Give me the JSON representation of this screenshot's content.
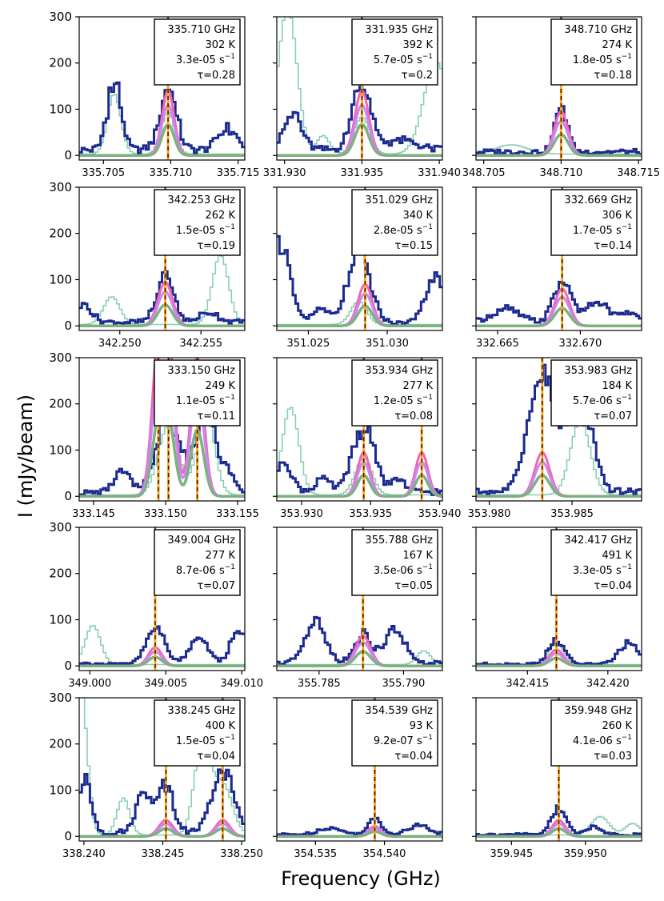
{
  "colors": {
    "observed": "#1a2a8f",
    "other_species": "#8ccfb4",
    "model_a": "#f564b4",
    "model_b": "#c48af2",
    "model_c": "#7fb07f",
    "line_marker": "#f2b01e",
    "line_marker_dash": "#5a0f1f"
  },
  "chart_data": {
    "type": "line",
    "xlabel": "Frequency (GHz)",
    "ylabel": "I (mJy/beam)",
    "ylim": [
      -10,
      300
    ],
    "yticks": [
      0,
      100,
      200,
      300
    ],
    "ytick_labels": [
      "0",
      "100",
      "200",
      "300"
    ],
    "series_names": [
      "observed",
      "other_species",
      "model_a",
      "model_b",
      "model_c"
    ],
    "panels": [
      {
        "freq_label": "335.710 GHz",
        "eup": "302 K",
        "aij": "3.3e-05 s",
        "tau": "τ=0.28",
        "xlim": [
          335.7032,
          335.7155
        ],
        "xticks": [
          335.705,
          335.71,
          335.715
        ],
        "xtick_labels": [
          "335.705",
          "335.710",
          "335.715"
        ],
        "lines": [
          335.7098
        ],
        "peak": 140,
        "observed": [
          {
            "c": 335.7058,
            "a": 145,
            "w": 0.0005
          },
          {
            "c": 335.7098,
            "a": 135,
            "w": 0.0006
          },
          {
            "c": 335.7142,
            "a": 45,
            "w": 0.0007
          }
        ],
        "other": [
          {
            "c": 335.7058,
            "a": 130,
            "w": 0.0005
          },
          {
            "c": 335.7098,
            "a": 90,
            "w": 0.0005
          }
        ],
        "baseline": 12
      },
      {
        "freq_label": "331.935 GHz",
        "eup": "392 K",
        "aij": "5.7e-05 s",
        "tau": "τ=0.2",
        "xlim": [
          331.9295,
          331.9402
        ],
        "xticks": [
          331.93,
          331.935,
          331.94
        ],
        "xtick_labels": [
          "331.930",
          "331.935",
          "331.940"
        ],
        "lines": [
          331.935
        ],
        "peak": 140,
        "observed": [
          {
            "c": 331.9305,
            "a": 80,
            "w": 0.0006
          },
          {
            "c": 331.935,
            "a": 140,
            "w": 0.0006
          },
          {
            "c": 331.9375,
            "a": 20,
            "w": 0.001
          }
        ],
        "other": [
          {
            "c": 331.9302,
            "a": 320,
            "w": 0.0006
          },
          {
            "c": 331.9325,
            "a": 40,
            "w": 0.0004
          },
          {
            "c": 331.935,
            "a": 80,
            "w": 0.0005
          },
          {
            "c": 331.9398,
            "a": 200,
            "w": 0.0008
          }
        ],
        "baseline": 12
      },
      {
        "freq_label": "348.710 GHz",
        "eup": "274 K",
        "aij": "1.8e-05 s",
        "tau": "τ=0.18",
        "xlim": [
          348.7045,
          348.7152
        ],
        "xticks": [
          348.705,
          348.71,
          348.715
        ],
        "xtick_labels": [
          "348.705",
          "348.710",
          "348.715"
        ],
        "lines": [
          348.71
        ],
        "peak": 95,
        "observed": [
          {
            "c": 348.71,
            "a": 95,
            "w": 0.0004
          }
        ],
        "other": [
          {
            "c": 348.7068,
            "a": 20,
            "w": 0.001
          }
        ],
        "baseline": 8
      },
      {
        "freq_label": "342.253 GHz",
        "eup": "262 K",
        "aij": "1.5e-05 s",
        "tau": "τ=0.19",
        "xlim": [
          342.2475,
          342.2577
        ],
        "xticks": [
          342.25,
          342.255
        ],
        "xtick_labels": [
          "342.250",
          "342.255"
        ],
        "lines": [
          342.2528
        ],
        "peak": 95,
        "observed": [
          {
            "c": 342.2478,
            "a": 35,
            "w": 0.0005
          },
          {
            "c": 342.2528,
            "a": 100,
            "w": 0.0005
          },
          {
            "c": 342.2555,
            "a": 20,
            "w": 0.0006
          }
        ],
        "other": [
          {
            "c": 342.2495,
            "a": 60,
            "w": 0.0005
          },
          {
            "c": 342.2562,
            "a": 150,
            "w": 0.0005
          }
        ],
        "baseline": 8
      },
      {
        "freq_label": "351.029 GHz",
        "eup": "340 K",
        "aij": "2.8e-05 s",
        "tau": "τ=0.15",
        "xlim": [
          351.023,
          351.0335
        ],
        "xticks": [
          351.025,
          351.03
        ],
        "xtick_labels": [
          "351.025",
          "351.030"
        ],
        "lines": [
          351.0286
        ],
        "peak": 90,
        "observed": [
          {
            "c": 351.0232,
            "a": 180,
            "w": 0.0006
          },
          {
            "c": 351.0282,
            "a": 150,
            "w": 0.0007
          },
          {
            "c": 351.0258,
            "a": 30,
            "w": 0.0005
          },
          {
            "c": 351.033,
            "a": 100,
            "w": 0.0006
          }
        ],
        "other": [
          {
            "c": 351.0282,
            "a": 50,
            "w": 0.0005
          }
        ],
        "baseline": 6
      },
      {
        "freq_label": "332.669 GHz",
        "eup": "306 K",
        "aij": "1.7e-05 s",
        "tau": "τ=0.14",
        "xlim": [
          332.6637,
          332.6737
        ],
        "xticks": [
          332.665,
          332.67
        ],
        "xtick_labels": [
          "332.665",
          "332.670"
        ],
        "lines": [
          332.6689
        ],
        "peak": 80,
        "observed": [
          {
            "c": 332.6689,
            "a": 90,
            "w": 0.0005
          },
          {
            "c": 332.6655,
            "a": 30,
            "w": 0.0008
          },
          {
            "c": 332.671,
            "a": 40,
            "w": 0.0008
          },
          {
            "c": 332.673,
            "a": 20,
            "w": 0.0004
          }
        ],
        "other": [],
        "baseline": 8
      },
      {
        "freq_label": "333.150 GHz",
        "eup": "249 K",
        "aij": "1.1e-05 s",
        "tau": "τ=0.11",
        "xlim": [
          333.144,
          333.1555
        ],
        "xticks": [
          333.145,
          333.15,
          333.155
        ],
        "xtick_labels": [
          "333.145",
          "333.150",
          "333.155"
        ],
        "lines": [
          333.1495,
          333.1502,
          333.1522
        ],
        "peak": 300,
        "observed": [
          {
            "c": 333.147,
            "a": 45,
            "w": 0.0006
          },
          {
            "c": 333.1502,
            "a": 190,
            "w": 0.0008
          },
          {
            "c": 333.1528,
            "a": 210,
            "w": 0.0006
          },
          {
            "c": 333.1543,
            "a": 40,
            "w": 0.0005
          }
        ],
        "other": [
          {
            "c": 333.1502,
            "a": 150,
            "w": 0.0007
          },
          {
            "c": 333.1528,
            "a": 180,
            "w": 0.0006
          }
        ],
        "baseline": 8
      },
      {
        "freq_label": "353.934 GHz",
        "eup": "277 K",
        "aij": "1.2e-05 s",
        "tau": "τ=0.08",
        "xlim": [
          353.9282,
          353.9402
        ],
        "xticks": [
          353.93,
          353.935,
          353.94
        ],
        "xtick_labels": [
          "353.930",
          "353.935",
          "353.940"
        ],
        "lines": [
          353.9345,
          353.9387
        ],
        "peak": 95,
        "observed": [
          {
            "c": 353.9287,
            "a": 60,
            "w": 0.0006
          },
          {
            "c": 353.9345,
            "a": 140,
            "w": 0.0008
          },
          {
            "c": 353.9315,
            "a": 30,
            "w": 0.0005
          },
          {
            "c": 353.937,
            "a": 30,
            "w": 0.0004
          }
        ],
        "other": [
          {
            "c": 353.9292,
            "a": 190,
            "w": 0.0006
          },
          {
            "c": 353.9345,
            "a": 80,
            "w": 0.0006
          }
        ],
        "baseline": 10
      },
      {
        "freq_label": "353.983 GHz",
        "eup": "184 K",
        "aij": "5.7e-06 s",
        "tau": "τ=0.07",
        "xlim": [
          353.9792,
          353.9892
        ],
        "xticks": [
          353.98,
          353.985
        ],
        "xtick_labels": [
          "353.980",
          "353.985"
        ],
        "lines": [
          353.9832
        ],
        "peak": 95,
        "observed": [
          {
            "c": 353.9832,
            "a": 250,
            "w": 0.0008
          },
          {
            "c": 353.9855,
            "a": 200,
            "w": 0.0007
          }
        ],
        "other": [
          {
            "c": 353.9855,
            "a": 160,
            "w": 0.0006
          }
        ],
        "baseline": 10
      },
      {
        "freq_label": "349.004 GHz",
        "eup": "277 K",
        "aij": "8.7e-06 s",
        "tau": "τ=0.07",
        "xlim": [
          348.9993,
          349.0102
        ],
        "xticks": [
          349.0,
          349.005,
          349.01
        ],
        "xtick_labels": [
          "349.000",
          "349.005",
          "349.010"
        ],
        "lines": [
          349.0043
        ],
        "peak": 40,
        "observed": [
          {
            "c": 349.0043,
            "a": 80,
            "w": 0.0006
          },
          {
            "c": 349.0072,
            "a": 60,
            "w": 0.0006
          },
          {
            "c": 349.0098,
            "a": 80,
            "w": 0.0005
          }
        ],
        "other": [
          {
            "c": 349.0002,
            "a": 85,
            "w": 0.0005
          }
        ],
        "baseline": 4
      },
      {
        "freq_label": "355.788 GHz",
        "eup": "167 K",
        "aij": "3.5e-06 s",
        "tau": "τ=0.05",
        "xlim": [
          355.7825,
          355.7923
        ],
        "xticks": [
          355.785,
          355.79
        ],
        "xtick_labels": [
          "355.785",
          "355.790"
        ],
        "lines": [
          355.7876
        ],
        "peak": 65,
        "observed": [
          {
            "c": 355.7848,
            "a": 85,
            "w": 0.0006
          },
          {
            "c": 355.7876,
            "a": 60,
            "w": 0.0005
          },
          {
            "c": 355.7895,
            "a": 70,
            "w": 0.0006
          }
        ],
        "other": [
          {
            "c": 355.7912,
            "a": 30,
            "w": 0.0004
          }
        ],
        "baseline": 6
      },
      {
        "freq_label": "342.417 GHz",
        "eup": "491 K",
        "aij": "3.3e-05 s",
        "tau": "τ=0.04",
        "xlim": [
          342.4118,
          342.4221
        ],
        "xticks": [
          342.415,
          342.42
        ],
        "xtick_labels": [
          "342.415",
          "342.420"
        ],
        "lines": [
          342.4168
        ],
        "peak": 35,
        "observed": [
          {
            "c": 342.4168,
            "a": 50,
            "w": 0.0005
          },
          {
            "c": 342.4213,
            "a": 45,
            "w": 0.0006
          }
        ],
        "other": [
          {
            "c": 342.4168,
            "a": 45,
            "w": 0.0005
          }
        ],
        "baseline": 4
      },
      {
        "freq_label": "338.245 GHz",
        "eup": "400 K",
        "aij": "1.5e-05 s",
        "tau": "τ=0.04",
        "xlim": [
          338.2397,
          338.2502
        ],
        "xticks": [
          338.24,
          338.245,
          338.25
        ],
        "xtick_labels": [
          "338.240",
          "338.245",
          "338.250"
        ],
        "lines": [
          338.2452,
          338.2488
        ],
        "peak": 35,
        "observed": [
          {
            "c": 338.2401,
            "a": 110,
            "w": 0.0004
          },
          {
            "c": 338.2438,
            "a": 80,
            "w": 0.0005
          },
          {
            "c": 338.2452,
            "a": 100,
            "w": 0.0005
          },
          {
            "c": 338.2488,
            "a": 130,
            "w": 0.0007
          }
        ],
        "other": [
          {
            "c": 338.2398,
            "a": 320,
            "w": 0.0004
          },
          {
            "c": 338.2425,
            "a": 80,
            "w": 0.0004
          },
          {
            "c": 338.2475,
            "a": 200,
            "w": 0.0005
          },
          {
            "c": 338.2488,
            "a": 110,
            "w": 0.0006
          }
        ],
        "baseline": 8
      },
      {
        "freq_label": "354.539 GHz",
        "eup": "93 K",
        "aij": "9.2e-07 s",
        "tau": "τ=0.04",
        "xlim": [
          354.5322,
          354.5442
        ],
        "xticks": [
          354.535,
          354.54
        ],
        "xtick_labels": [
          "354.535",
          "354.540"
        ],
        "lines": [
          354.5393
        ],
        "peak": 22,
        "observed": [
          {
            "c": 354.5393,
            "a": 35,
            "w": 0.0005
          },
          {
            "c": 354.536,
            "a": 15,
            "w": 0.0008
          },
          {
            "c": 354.5425,
            "a": 20,
            "w": 0.0008
          }
        ],
        "other": [],
        "baseline": 4
      },
      {
        "freq_label": "359.948 GHz",
        "eup": "260 K",
        "aij": "4.1e-06 s",
        "tau": "τ=0.03",
        "xlim": [
          359.9426,
          359.9538
        ],
        "xticks": [
          359.945,
          359.95
        ],
        "xtick_labels": [
          "359.945",
          "359.950"
        ],
        "lines": [
          359.9482
        ],
        "peak": 35,
        "observed": [
          {
            "c": 359.9482,
            "a": 55,
            "w": 0.0005
          },
          {
            "c": 359.9505,
            "a": 15,
            "w": 0.0006
          }
        ],
        "other": [
          {
            "c": 359.951,
            "a": 40,
            "w": 0.0006
          },
          {
            "c": 359.9532,
            "a": 25,
            "w": 0.0005
          }
        ],
        "baseline": 4
      }
    ]
  },
  "aij_superscript": "−1"
}
